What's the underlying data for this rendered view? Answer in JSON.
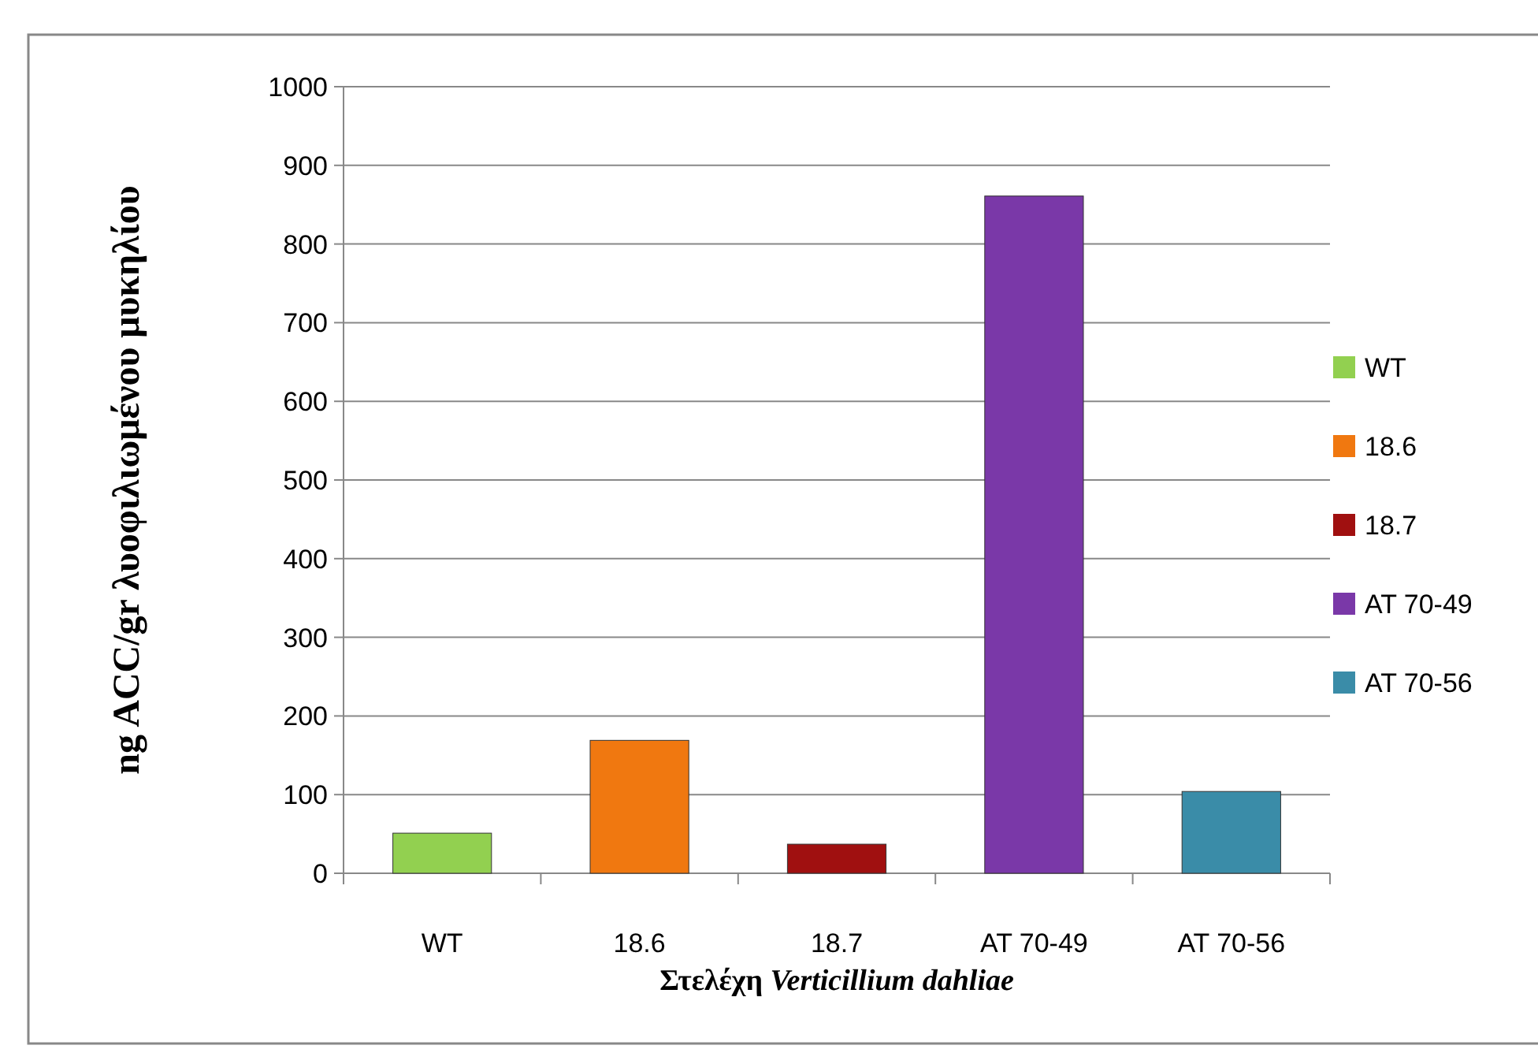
{
  "chart_data": {
    "type": "bar",
    "xlabel": "Στελέχη Verticillium dahliae",
    "ylabel": "ng ACC/gr λυοφιλιωμένου μυκηλίου",
    "categories": [
      "WT",
      "18.6",
      "18.7",
      "AT 70-49",
      "AT 70-56"
    ],
    "stacked": true,
    "series": [
      {
        "name": "WT",
        "color": "#92d050",
        "values": [
          51,
          null,
          null,
          null,
          null
        ]
      },
      {
        "name": "18.6",
        "color": "#f07810",
        "values": [
          null,
          169,
          null,
          null,
          null
        ]
      },
      {
        "name": "18.7",
        "color": "#a01010",
        "values": [
          null,
          null,
          37,
          null,
          null
        ]
      },
      {
        "name": "AT 70-49",
        "color": "#7a38a8",
        "values": [
          null,
          null,
          null,
          861,
          null
        ]
      },
      {
        "name": "AT 70-56",
        "color": "#3a8ca8",
        "values": [
          null,
          null,
          null,
          null,
          104
        ]
      }
    ],
    "ylim": [
      0,
      1000
    ],
    "yticks": [
      0,
      100,
      200,
      300,
      400,
      500,
      600,
      700,
      800,
      900,
      1000
    ],
    "grid": "y",
    "legend": "right"
  }
}
